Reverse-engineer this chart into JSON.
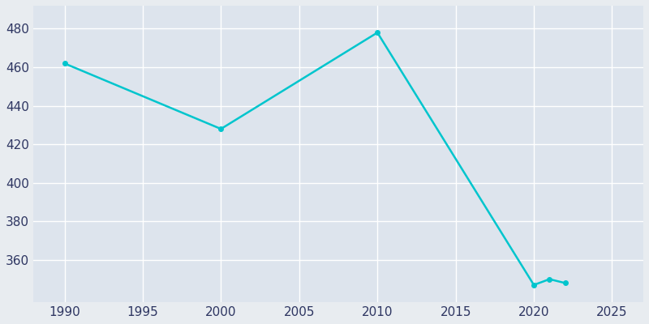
{
  "years": [
    1990,
    2000,
    2010,
    2020,
    2021,
    2022
  ],
  "population": [
    462,
    428,
    478,
    347,
    350,
    348
  ],
  "line_color": "#00C5CD",
  "marker_color": "#00C5CD",
  "bg_color": "#E8ECF0",
  "plot_bg_color": "#DDE4ED",
  "grid_color": "#ffffff",
  "tick_color": "#2d3561",
  "xlim": [
    1988,
    2027
  ],
  "ylim": [
    338,
    492
  ],
  "xticks": [
    1990,
    1995,
    2000,
    2005,
    2010,
    2015,
    2020,
    2025
  ],
  "yticks": [
    360,
    380,
    400,
    420,
    440,
    460,
    480
  ],
  "linewidth": 1.8,
  "markersize": 4
}
